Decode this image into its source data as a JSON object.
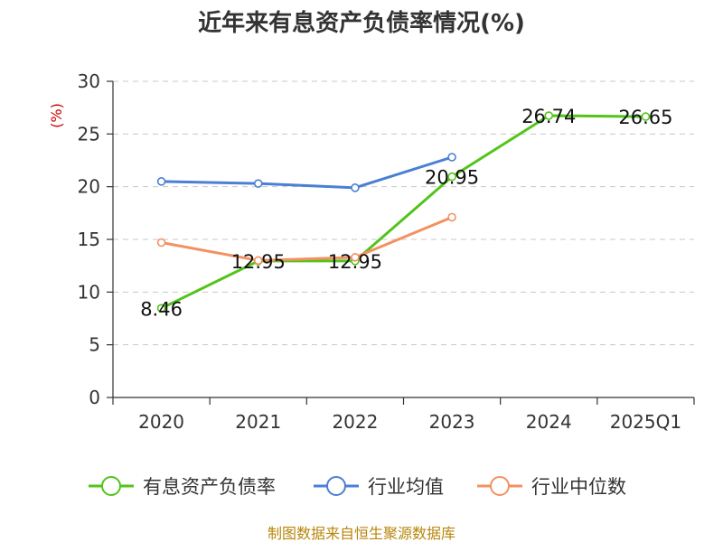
{
  "chart_data": {
    "type": "line",
    "title": "近年来有息资产负债率情况(%)",
    "ylabel": "(%)",
    "categories": [
      "2020",
      "2021",
      "2022",
      "2023",
      "2024",
      "2025Q1"
    ],
    "ylim": [
      0,
      30
    ],
    "yticks": [
      0,
      5,
      10,
      15,
      20,
      25,
      30
    ],
    "grid": true,
    "legend_position": "bottom",
    "series": [
      {
        "name": "有息资产负债率",
        "color": "#52c41a",
        "values": [
          8.46,
          12.95,
          12.95,
          20.95,
          26.74,
          26.65
        ],
        "labels": [
          "8.46",
          "12.95",
          "12.95",
          "20.95",
          "26.74",
          "26.65"
        ]
      },
      {
        "name": "行业均值",
        "color": "#4a7fd4",
        "values": [
          20.5,
          20.3,
          19.9,
          22.8,
          null,
          null
        ]
      },
      {
        "name": "行业中位数",
        "color": "#f39162",
        "values": [
          14.7,
          13.0,
          13.3,
          17.1,
          null,
          null
        ]
      }
    ],
    "source": "制图数据来自恒生聚源数据库"
  }
}
